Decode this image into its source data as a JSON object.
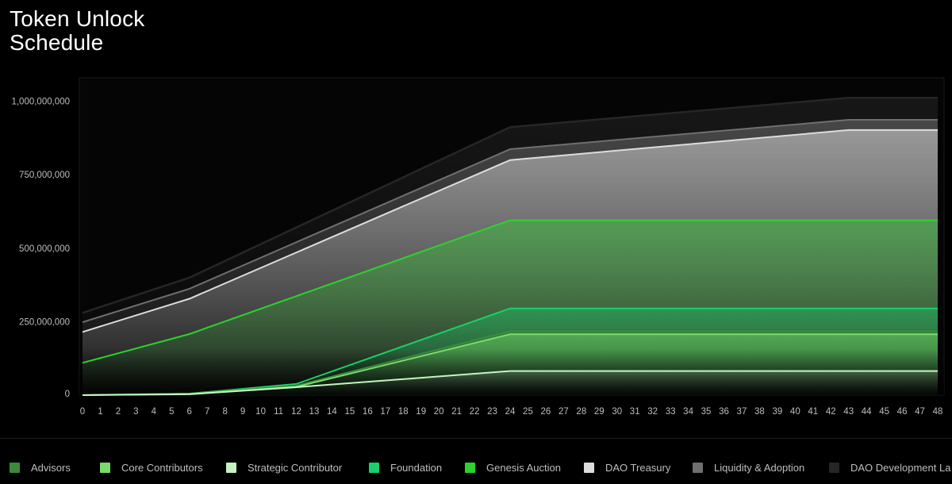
{
  "title": {
    "line1": "Token Unlock",
    "line2": "Schedule"
  },
  "chart_data": {
    "type": "area",
    "title": "Token Unlock Schedule",
    "stacked": false,
    "xlabel": "",
    "ylabel": "",
    "x": [
      0,
      1,
      2,
      3,
      4,
      5,
      6,
      7,
      8,
      9,
      10,
      11,
      12,
      13,
      14,
      15,
      16,
      17,
      18,
      19,
      20,
      21,
      22,
      23,
      24,
      25,
      26,
      27,
      28,
      29,
      30,
      31,
      32,
      33,
      34,
      35,
      36,
      37,
      38,
      39,
      40,
      41,
      42,
      43,
      44,
      45,
      46,
      47,
      48
    ],
    "x_tick_labels": [
      "0",
      "1",
      "2",
      "3",
      "4",
      "5",
      "6",
      "7",
      "8",
      "9",
      "10",
      "11",
      "12",
      "13",
      "14",
      "15",
      "16",
      "17",
      "18",
      "19",
      "20",
      "21",
      "22",
      "23",
      "24",
      "25",
      "26",
      "27",
      "28",
      "29",
      "30",
      "31",
      "32",
      "33",
      "34",
      "35",
      "36",
      "37",
      "38",
      "39",
      "40",
      "41",
      "42",
      "43",
      "44",
      "45",
      "46",
      "47",
      "48"
    ],
    "y_tick_values": [
      0,
      250000000,
      500000000,
      750000000,
      1000000000
    ],
    "y_tick_labels": [
      "0",
      "250,000,000",
      "500,000,000",
      "750,000,000",
      "1,000,000,000"
    ],
    "ylim": [
      0,
      1000000000
    ],
    "grid": false,
    "legend_position": "bottom",
    "series": [
      {
        "name": "DAO Development La",
        "color": "#262626",
        "points": [
          [
            0,
            280000000
          ],
          [
            6,
            400000000
          ],
          [
            24,
            912000000
          ],
          [
            43,
            1012000000
          ],
          [
            48,
            1012000000
          ]
        ]
      },
      {
        "name": "Liquidity & Adoption",
        "color": "#6f6f6f",
        "points": [
          [
            0,
            248000000
          ],
          [
            6,
            362000000
          ],
          [
            24,
            837000000
          ],
          [
            43,
            937000000
          ],
          [
            48,
            937000000
          ]
        ]
      },
      {
        "name": "DAO Treasury",
        "color": "#dcdcdc",
        "points": [
          [
            0,
            215000000
          ],
          [
            6,
            328000000
          ],
          [
            24,
            800000000
          ],
          [
            43,
            902000000
          ],
          [
            48,
            902000000
          ]
        ]
      },
      {
        "name": "Genesis Auction",
        "color": "#2bd42b",
        "points": [
          [
            0,
            110000000
          ],
          [
            6,
            208000000
          ],
          [
            24,
            595000000
          ],
          [
            48,
            595000000
          ]
        ]
      },
      {
        "name": "Foundation",
        "color": "#19d16a",
        "points": [
          [
            0,
            0
          ],
          [
            6,
            5000000
          ],
          [
            12,
            38000000
          ],
          [
            24,
            295000000
          ],
          [
            48,
            295000000
          ]
        ]
      },
      {
        "name": "Advisors",
        "color": "#3c8a3c",
        "points": [
          [
            0,
            0
          ],
          [
            6,
            5000000
          ],
          [
            12,
            32000000
          ],
          [
            24,
            218000000
          ],
          [
            48,
            218000000
          ]
        ]
      },
      {
        "name": "Core Contributors",
        "color": "#7bdc6a",
        "points": [
          [
            0,
            0
          ],
          [
            6,
            4000000
          ],
          [
            12,
            28000000
          ],
          [
            24,
            207000000
          ],
          [
            48,
            207000000
          ]
        ]
      },
      {
        "name": "Strategic Contributor",
        "color": "#c4f5c0",
        "points": [
          [
            0,
            0
          ],
          [
            6,
            3000000
          ],
          [
            12,
            27000000
          ],
          [
            24,
            82000000
          ],
          [
            48,
            82000000
          ]
        ]
      }
    ]
  },
  "legend": [
    {
      "label": "Advisors",
      "color": "#3c8a3c"
    },
    {
      "label": "Core Contributors",
      "color": "#7bdc6a"
    },
    {
      "label": "Strategic Contributor",
      "color": "#c4f5c0"
    },
    {
      "label": "Foundation",
      "color": "#19d16a"
    },
    {
      "label": "Genesis Auction",
      "color": "#2bd42b"
    },
    {
      "label": "DAO Treasury",
      "color": "#dcdcdc"
    },
    {
      "label": "Liquidity & Adoption",
      "color": "#6f6f6f"
    },
    {
      "label": "DAO Development La",
      "color": "#262626"
    }
  ]
}
